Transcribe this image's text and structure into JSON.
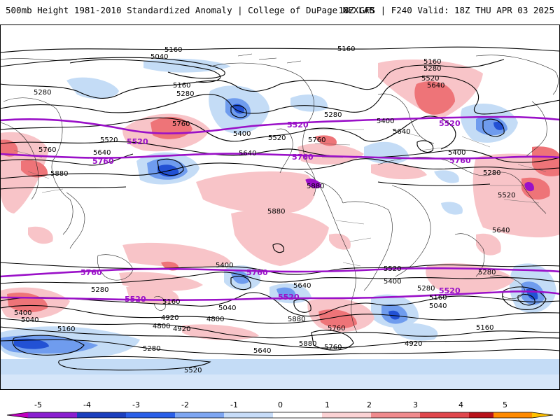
{
  "header": {
    "title_left": "500mb Height 1981-2010 Standardized Anomaly | College of DuPage NEXLAB",
    "title_right": "18Z GFS | F240 Valid: 18Z THU APR 03 2025"
  },
  "map": {
    "contour_labels": [
      "5160",
      "5040",
      "5160",
      "5160",
      "5280",
      "5280",
      "5160",
      "5280",
      "5520",
      "5640",
      "5280",
      "5400",
      "5640",
      "5400",
      "5520",
      "5640",
      "5760",
      "5760",
      "5880",
      "5880",
      "5880",
      "5760",
      "5640",
      "5520",
      "5400",
      "5280",
      "5520",
      "5640",
      "5400",
      "5280",
      "5160",
      "5040",
      "4920",
      "4800",
      "4920",
      "4800",
      "5040",
      "5160",
      "5280",
      "5520",
      "5640",
      "5880",
      "5760",
      "5880",
      "5760",
      "5640",
      "5520",
      "5400",
      "5280",
      "5160",
      "5040",
      "4920",
      "5160",
      "5280",
      "5400"
    ],
    "highlight_labels": [
      "5520",
      "5520",
      "5520",
      "5760",
      "5760",
      "5760",
      "5760",
      "5760",
      "5520",
      "5520",
      "5520"
    ],
    "colors": {
      "neg_light": "#c4dcf6",
      "neg_mid": "#6f9cee",
      "neg_dark": "#2251d4",
      "pos_light": "#f8c4c8",
      "pos_mid": "#ee7478",
      "pos_dark": "#d9262f",
      "highlight_contour": "#9a10c8"
    }
  },
  "colorbar": {
    "ticks": [
      "-5",
      "-4",
      "-3",
      "-2",
      "-1",
      "0",
      "1",
      "2",
      "3",
      "4",
      "5"
    ],
    "colors": [
      "#c000c0",
      "#8a1fd0",
      "#1b3fbe",
      "#2a5fe8",
      "#7ea6f2",
      "#c7dcf8",
      "#ffffff",
      "#fbd2d4",
      "#f08a8d",
      "#e0464c",
      "#b8121a",
      "#ff8a00",
      "#ffc000"
    ]
  }
}
